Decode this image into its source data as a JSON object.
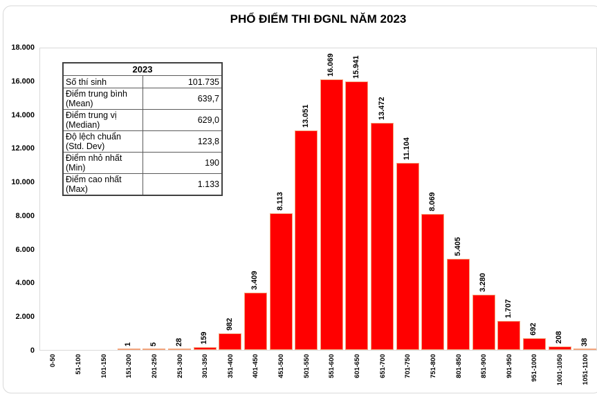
{
  "title": "PHỔ ĐIỂM THI ĐGNL NĂM 2023",
  "stats_table": {
    "header": "2023",
    "rows": [
      {
        "label": "Số thí sinh",
        "value": "101.735"
      },
      {
        "label": "Điểm trung bình (Mean)",
        "value": "639,7"
      },
      {
        "label": "Điểm trung vị (Median)",
        "value": "629,0"
      },
      {
        "label": "Độ lệch chuẩn (Std. Dev)",
        "value": "123,8"
      },
      {
        "label": "Điểm nhỏ nhất (Min)",
        "value": "190"
      },
      {
        "label": "Điểm cao nhất (Max)",
        "value": "1.133"
      }
    ]
  },
  "chart_data": {
    "type": "bar",
    "title": "PHỔ ĐIỂM THI ĐGNL NĂM 2023",
    "categories": [
      "0-50",
      "51-100",
      "101-150",
      "151-200",
      "201-250",
      "251-300",
      "301-350",
      "351-400",
      "401-450",
      "451-500",
      "501-550",
      "551-600",
      "601-650",
      "651-700",
      "701-750",
      "751-800",
      "801-850",
      "851-900",
      "901-950",
      "951-1000",
      "1001-1050",
      "1051-1100"
    ],
    "values": [
      0,
      0,
      0,
      1,
      5,
      28,
      159,
      982,
      3409,
      8113,
      13051,
      16069,
      15941,
      13472,
      11104,
      8069,
      5405,
      3280,
      1707,
      692,
      208,
      38
    ],
    "bar_labels": [
      "",
      "",
      "",
      "1",
      "5",
      "28",
      "159",
      "982",
      "3.409",
      "8.113",
      "13.051",
      "16.069",
      "15.941",
      "13.472",
      "11.104",
      "8.069",
      "5.405",
      "3.280",
      "1.707",
      "692",
      "208",
      "38"
    ],
    "y_ticks": [
      "0",
      "2.000",
      "4.000",
      "6.000",
      "8.000",
      "10.000",
      "12.000",
      "14.000",
      "16.000",
      "18.000"
    ],
    "ylim": [
      0,
      18000
    ],
    "xlabel": "",
    "ylabel": "",
    "grid": false,
    "legend": "none",
    "colors": {
      "bar_fill": "#ff0000",
      "bar_border": "#f4a47c"
    }
  }
}
